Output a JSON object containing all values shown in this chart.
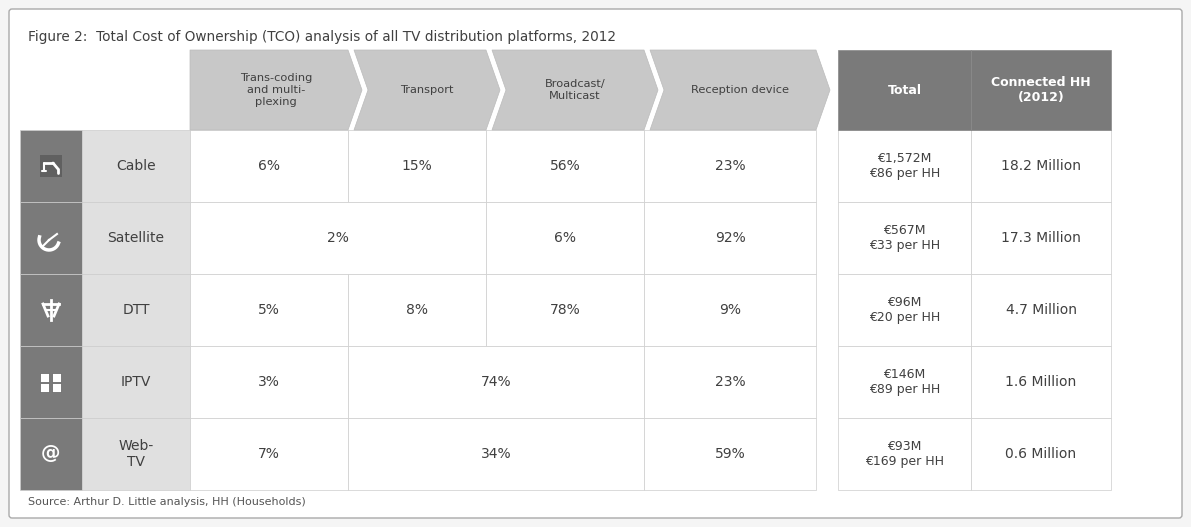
{
  "title": "Figure 2:  Total Cost of Ownership (TCO) analysis of all TV distribution platforms, 2012",
  "source": "Source: Arthur D. Little analysis, HH (Households)",
  "col_headers": [
    "Trans-coding\nand multi-\nplexing",
    "Transport",
    "Broadcast/\nMulticast",
    "Reception device",
    "Total",
    "Connected HH\n(2012)"
  ],
  "row_labels": [
    "Cable",
    "Satellite",
    "DTT",
    "IPTV",
    "Web-\nTV"
  ],
  "total_cells": [
    "€1,572M\n€86 per HH",
    "€567M\n€33 per HH",
    "€96M\n€20 per HH",
    "€146M\n€89 per HH",
    "€93M\n€169 per HH"
  ],
  "connected_cells": [
    "18.2 Million",
    "17.3 Million",
    "4.7 Million",
    "1.6 Million",
    "0.6 Million"
  ],
  "header_bg": "#c8c8c8",
  "dark_header_bg": "#7a7a7a",
  "row_icon_bg": "#7a7a7a",
  "row_label_bg": "#e0e0e0",
  "cell_bg": "#ffffff",
  "border_color": "#cccccc",
  "text_color_dark": "#404040",
  "text_color_white": "#ffffff",
  "outer_border": "#aaaaaa",
  "bg_white": "#ffffff",
  "gap_color": "#ffffff",
  "fig_bg": "#f5f5f5"
}
